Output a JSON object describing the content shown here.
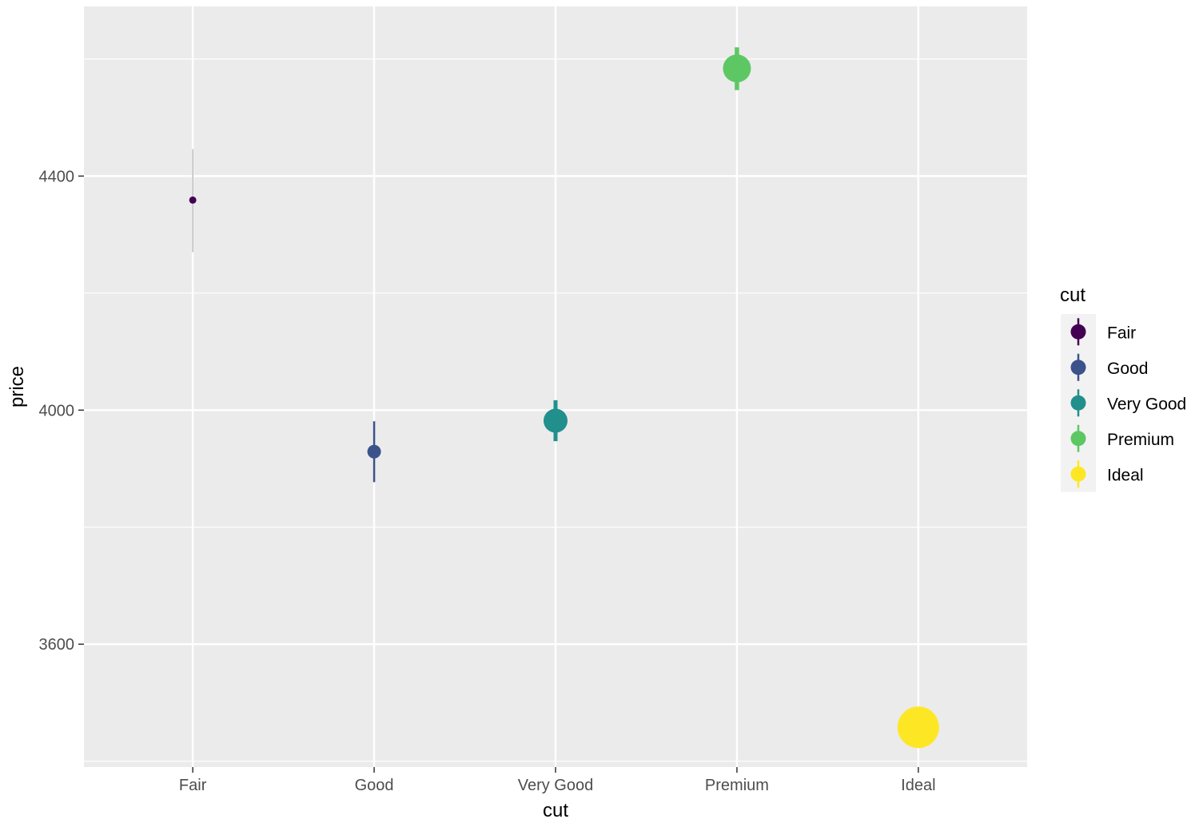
{
  "chart_data": {
    "type": "scatter",
    "title": "",
    "xlabel": "cut",
    "ylabel": "price",
    "categories": [
      "Fair",
      "Good",
      "Very Good",
      "Premium",
      "Ideal"
    ],
    "ylim": [
      3390,
      4690
    ],
    "yticks": [
      3600,
      4000,
      4400
    ],
    "grid": true,
    "points": [
      {
        "category": "Fair",
        "y": 4359,
        "ymin": 4270,
        "ymax": 4446,
        "color": "#440154"
      },
      {
        "category": "Good",
        "y": 3929,
        "ymin": 3877,
        "ymax": 3981,
        "color": "#3B528B"
      },
      {
        "category": "Very Good",
        "y": 3982,
        "ymin": 3947,
        "ymax": 4017,
        "color": "#21908C"
      },
      {
        "category": "Premium",
        "y": 4584,
        "ymin": 4547,
        "ymax": 4620,
        "color": "#5DC863"
      },
      {
        "category": "Ideal",
        "y": 3458,
        "ymin": 3428,
        "ymax": 3488,
        "color": "#FDE725"
      }
    ],
    "legend": {
      "title": "cut",
      "position": "right",
      "entries": [
        "Fair",
        "Good",
        "Very Good",
        "Premium",
        "Ideal"
      ]
    },
    "colors": {
      "panel_background": "#EBEBEB",
      "grid": "#FFFFFF",
      "axis_text": "#4D4D4D",
      "axis_title": "#000000"
    }
  }
}
